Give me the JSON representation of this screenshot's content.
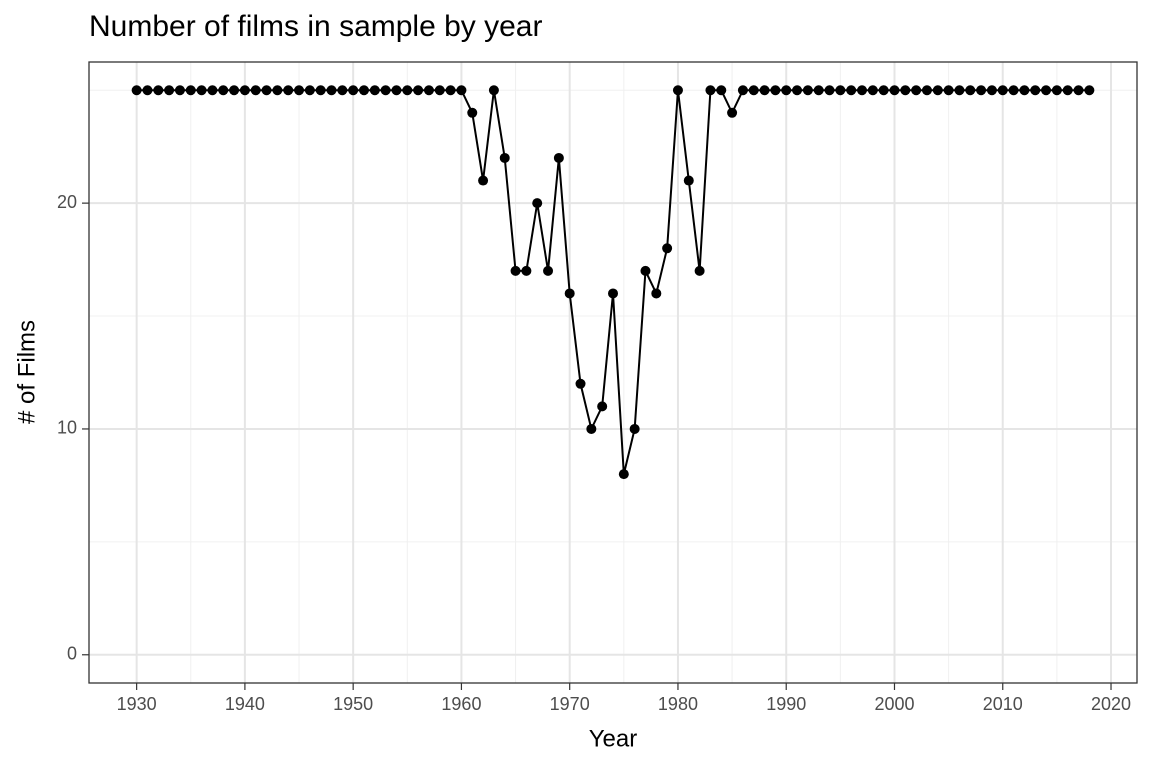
{
  "chart_data": {
    "type": "line",
    "title": "Number of films in sample by year",
    "x_label": "Year",
    "y_label": "# of Films",
    "x": [
      1930,
      1931,
      1932,
      1933,
      1934,
      1935,
      1936,
      1937,
      1938,
      1939,
      1940,
      1941,
      1942,
      1943,
      1944,
      1945,
      1946,
      1947,
      1948,
      1949,
      1950,
      1951,
      1952,
      1953,
      1954,
      1955,
      1956,
      1957,
      1958,
      1959,
      1960,
      1961,
      1962,
      1963,
      1964,
      1965,
      1966,
      1967,
      1968,
      1969,
      1970,
      1971,
      1972,
      1973,
      1974,
      1975,
      1976,
      1977,
      1978,
      1979,
      1980,
      1981,
      1982,
      1983,
      1984,
      1985,
      1986,
      1987,
      1988,
      1989,
      1990,
      1991,
      1992,
      1993,
      1994,
      1995,
      1996,
      1997,
      1998,
      1999,
      2000,
      2001,
      2002,
      2003,
      2004,
      2005,
      2006,
      2007,
      2008,
      2009,
      2010,
      2011,
      2012,
      2013,
      2014,
      2015,
      2016,
      2017,
      2018
    ],
    "values": [
      25,
      25,
      25,
      25,
      25,
      25,
      25,
      25,
      25,
      25,
      25,
      25,
      25,
      25,
      25,
      25,
      25,
      25,
      25,
      25,
      25,
      25,
      25,
      25,
      25,
      25,
      25,
      25,
      25,
      25,
      25,
      24,
      21,
      25,
      22,
      17,
      17,
      20,
      17,
      22,
      16,
      12,
      10,
      11,
      16,
      8,
      10,
      17,
      16,
      18,
      25,
      21,
      17,
      25,
      25,
      24,
      25,
      25,
      25,
      25,
      25,
      25,
      25,
      25,
      25,
      25,
      25,
      25,
      25,
      25,
      25,
      25,
      25,
      25,
      25,
      25,
      25,
      25,
      25,
      25,
      25,
      25,
      25,
      25,
      25,
      25,
      25,
      25,
      25
    ],
    "color": "#000000",
    "xlim": [
      1925.6,
      2022.4
    ],
    "ylim": [
      -1.25,
      26.25
    ],
    "xticks": [
      1930,
      1940,
      1950,
      1960,
      1970,
      1980,
      1990,
      2000,
      2010,
      2020
    ],
    "yticks": [
      0,
      10,
      20
    ],
    "x_minor_grid": [
      1935,
      1945,
      1955,
      1965,
      1975,
      1985,
      1995,
      2005,
      2015
    ],
    "y_minor_grid": [
      5,
      15,
      25
    ],
    "grid": true
  }
}
